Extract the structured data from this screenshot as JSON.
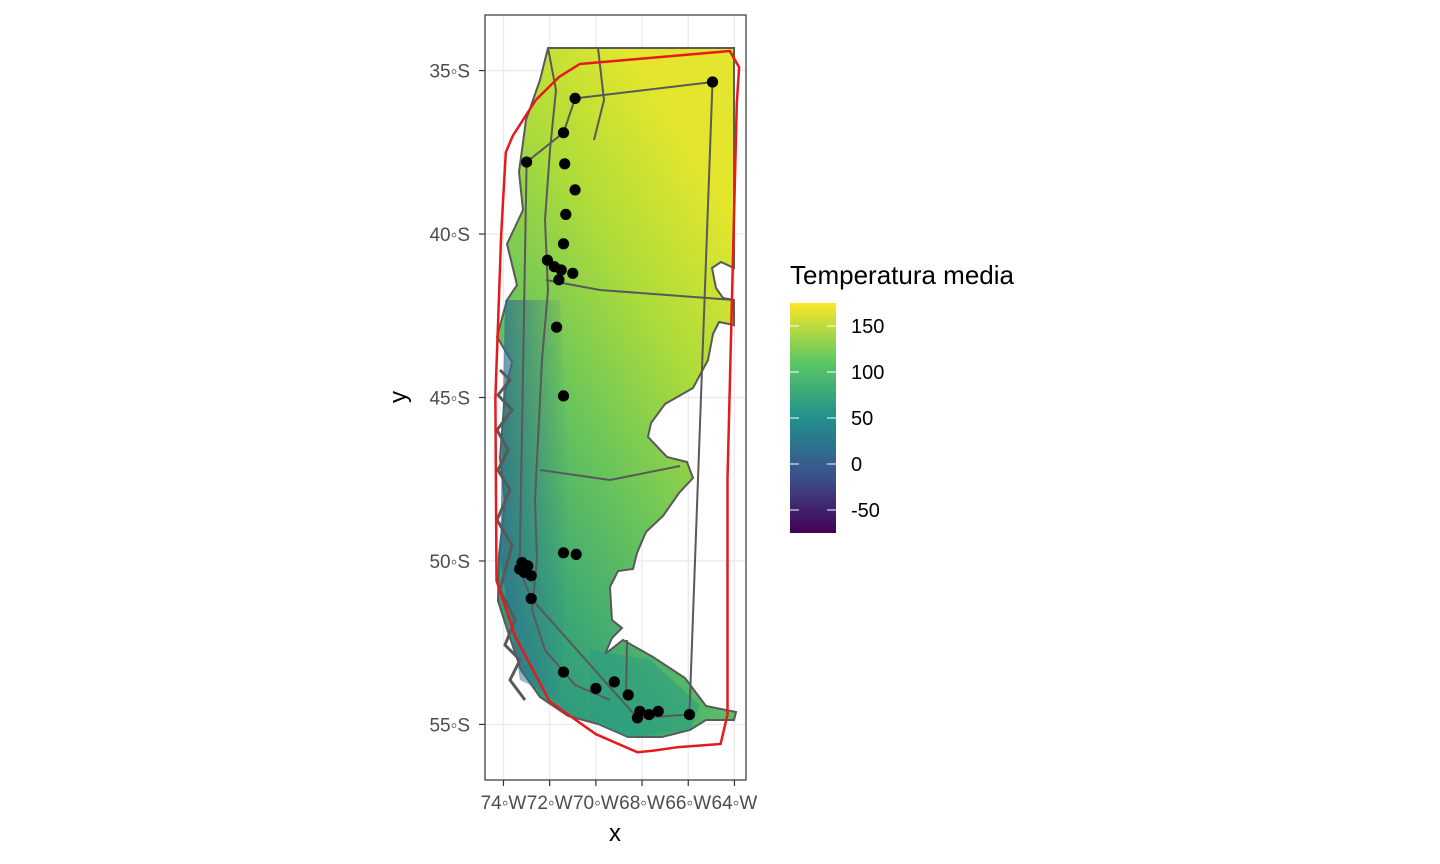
{
  "chart_data": {
    "type": "map",
    "xlabel": "x",
    "ylabel": "y",
    "xlim": [
      -74.8,
      -63.5
    ],
    "ylim": [
      -56.7,
      -33.3
    ],
    "x_ticks": [
      {
        "value": -74,
        "label": "74◦W"
      },
      {
        "value": -72,
        "label": "72◦W"
      },
      {
        "value": -70,
        "label": "70◦W"
      },
      {
        "value": -68,
        "label": "68◦W"
      },
      {
        "value": -66,
        "label": "66◦W"
      },
      {
        "value": -64,
        "label": "64◦W"
      }
    ],
    "y_ticks": [
      {
        "value": -35,
        "label": "35◦S"
      },
      {
        "value": -40,
        "label": "40◦S"
      },
      {
        "value": -45,
        "label": "45◦S"
      },
      {
        "value": -50,
        "label": "50◦S"
      },
      {
        "value": -55,
        "label": "55◦S"
      }
    ],
    "legend": {
      "title": "Temperatura media",
      "placement": "right",
      "range": [
        -75,
        175
      ],
      "breaks": [
        {
          "value": 150,
          "label": "150"
        },
        {
          "value": 100,
          "label": "100"
        },
        {
          "value": 50,
          "label": "50"
        },
        {
          "value": 0,
          "label": "0"
        },
        {
          "value": -50,
          "label": "-50"
        }
      ],
      "palette": [
        "#440154",
        "#3b528b",
        "#21908c",
        "#5ec962",
        "#fde725"
      ]
    },
    "grid": true,
    "colors": {
      "points": "#000000",
      "hull": "#e41a1c",
      "boundary": "#595959",
      "panel_border": "#333333",
      "grid": "#ebebeb"
    },
    "points": [
      [
        -64.95,
        -35.35
      ],
      [
        -70.9,
        -35.85
      ],
      [
        -73.0,
        -37.8
      ],
      [
        -71.4,
        -36.9
      ],
      [
        -71.35,
        -37.85
      ],
      [
        -70.9,
        -38.65
      ],
      [
        -71.3,
        -39.4
      ],
      [
        -71.4,
        -40.3
      ],
      [
        -72.1,
        -40.8
      ],
      [
        -71.8,
        -41.0
      ],
      [
        -71.5,
        -41.1
      ],
      [
        -71.0,
        -41.2
      ],
      [
        -71.6,
        -41.4
      ],
      [
        -71.7,
        -42.85
      ],
      [
        -71.4,
        -44.95
      ],
      [
        -71.4,
        -49.75
      ],
      [
        -70.85,
        -49.8
      ],
      [
        -73.2,
        -50.05
      ],
      [
        -72.95,
        -50.15
      ],
      [
        -73.3,
        -50.25
      ],
      [
        -73.1,
        -50.35
      ],
      [
        -72.8,
        -50.45
      ],
      [
        -72.8,
        -51.15
      ],
      [
        -71.4,
        -53.4
      ],
      [
        -70.0,
        -53.9
      ],
      [
        -69.2,
        -53.7
      ],
      [
        -68.6,
        -54.1
      ],
      [
        -68.1,
        -54.6
      ],
      [
        -68.2,
        -54.8
      ],
      [
        -67.7,
        -54.7
      ],
      [
        -67.3,
        -54.6
      ],
      [
        -65.95,
        -54.7
      ]
    ],
    "hull": [
      [
        -70.7,
        -34.8
      ],
      [
        -64.2,
        -34.4
      ],
      [
        -63.8,
        -34.9
      ],
      [
        -63.9,
        -36.0
      ],
      [
        -64.3,
        -47.5
      ],
      [
        -64.3,
        -54.7
      ],
      [
        -64.6,
        -55.6
      ],
      [
        -66.5,
        -55.7
      ],
      [
        -67.5,
        -55.8
      ],
      [
        -68.2,
        -55.85
      ],
      [
        -70.0,
        -55.3
      ],
      [
        -72.0,
        -54.3
      ],
      [
        -73.5,
        -52.3
      ],
      [
        -74.3,
        -50.6
      ],
      [
        -74.35,
        -45.0
      ],
      [
        -74.1,
        -40.0
      ],
      [
        -73.9,
        -37.5
      ],
      [
        -73.6,
        -37.0
      ],
      [
        -72.6,
        -35.9
      ],
      [
        -71.6,
        -35.2
      ]
    ],
    "inner_polygon": [
      [
        -70.9,
        -35.85
      ],
      [
        -64.95,
        -35.35
      ],
      [
        -65.95,
        -54.7
      ],
      [
        -68.2,
        -54.8
      ],
      [
        -72.8,
        -51.15
      ],
      [
        -73.3,
        -50.25
      ],
      [
        -73.0,
        -37.8
      ],
      [
        -71.4,
        -36.9
      ]
    ]
  }
}
